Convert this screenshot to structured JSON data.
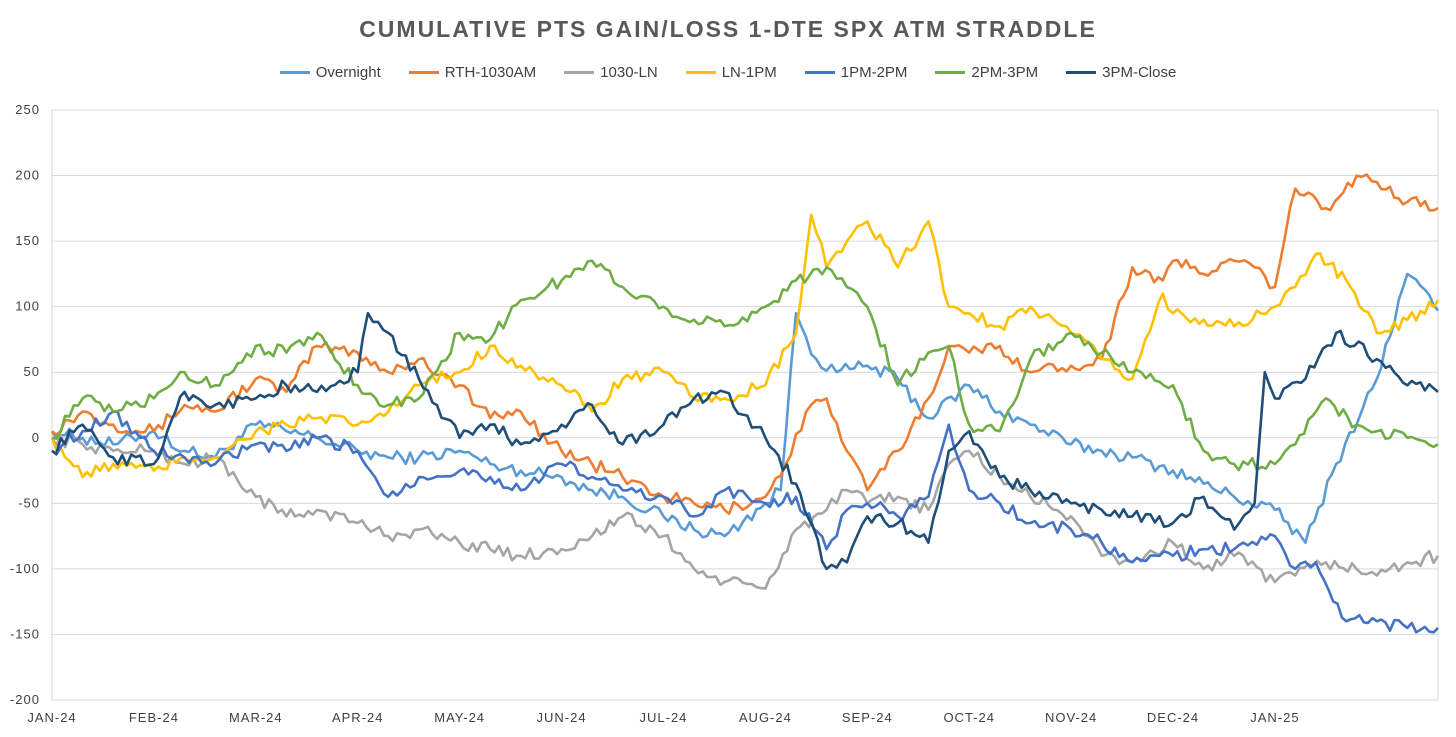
{
  "chart_data": {
    "type": "line",
    "title": "CUMULATIVE PTS GAIN/LOSS 1-DTE SPX ATM STRADDLE",
    "xlabel": "",
    "ylabel": "",
    "ylim": [
      -200,
      250
    ],
    "yticks": [
      -200,
      -150,
      -100,
      -50,
      0,
      50,
      100,
      150,
      200,
      250
    ],
    "x_tick_labels": [
      "JAN-24",
      "FEB-24",
      "MAR-24",
      "APR-24",
      "MAY-24",
      "JUN-24",
      "JUL-24",
      "AUG-24",
      "SEP-24",
      "OCT-24",
      "NOV-24",
      "DEC-24",
      "JAN-25"
    ],
    "x_range_months": [
      0,
      13.6
    ],
    "legend_position": "top",
    "gridlines": "horizontal",
    "series": [
      {
        "name": "Overnight",
        "color": "#5B9BD5",
        "x": [
          0,
          0.3,
          0.6,
          1,
          1.3,
          1.6,
          2,
          2.3,
          2.6,
          3,
          3.3,
          3.6,
          4,
          4.3,
          4.6,
          5,
          5.3,
          5.6,
          6,
          6.3,
          6.6,
          7,
          7.15,
          7.3,
          7.5,
          7.7,
          8,
          8.3,
          8.6,
          9,
          9.3,
          9.6,
          10,
          10.3,
          10.6,
          11,
          11.3,
          11.6,
          12,
          12.3,
          12.6,
          13,
          13.3,
          13.6
        ],
        "values": [
          5,
          0,
          -5,
          5,
          -10,
          -15,
          10,
          5,
          0,
          -10,
          -15,
          -15,
          -10,
          -20,
          -25,
          -30,
          -40,
          -45,
          -60,
          -70,
          -75,
          -50,
          -40,
          95,
          60,
          50,
          55,
          45,
          15,
          40,
          20,
          10,
          -5,
          -10,
          -15,
          -25,
          -35,
          -45,
          -55,
          -80,
          -20,
          45,
          125,
          97
        ]
      },
      {
        "name": "RTH-1030AM",
        "color": "#ED7D31",
        "x": [
          0,
          0.3,
          0.6,
          1,
          1.3,
          1.6,
          2,
          2.3,
          2.6,
          3,
          3.3,
          3.6,
          4,
          4.3,
          4.6,
          5,
          5.3,
          5.6,
          6,
          6.3,
          6.6,
          7,
          7.2,
          7.4,
          7.6,
          7.8,
          8,
          8.3,
          8.6,
          8.8,
          9,
          9.3,
          9.6,
          10,
          10.3,
          10.6,
          10.9,
          11,
          11.3,
          11.6,
          11.8,
          12,
          12.2,
          12.5,
          12.8,
          13,
          13.3,
          13.6
        ],
        "values": [
          5,
          20,
          10,
          5,
          25,
          20,
          45,
          35,
          70,
          65,
          50,
          60,
          40,
          15,
          20,
          -10,
          -20,
          -30,
          -45,
          -50,
          -55,
          -45,
          -20,
          20,
          30,
          -10,
          -40,
          -10,
          30,
          70,
          65,
          70,
          50,
          55,
          60,
          130,
          120,
          135,
          125,
          135,
          130,
          115,
          190,
          175,
          200,
          195,
          180,
          175
        ]
      },
      {
        "name": "1030-LN",
        "color": "#A5A5A5",
        "x": [
          0,
          0.3,
          0.6,
          1,
          1.3,
          1.6,
          2,
          2.3,
          2.6,
          3,
          3.3,
          3.6,
          4,
          4.3,
          4.6,
          5,
          5.3,
          5.6,
          6,
          6.3,
          6.6,
          7,
          7.3,
          7.6,
          7.8,
          8,
          8.3,
          8.6,
          8.8,
          9,
          9.3,
          9.6,
          10,
          10.3,
          10.6,
          11,
          11.3,
          11.6,
          12,
          12.2,
          12.5,
          12.8,
          13,
          13.3,
          13.6
        ],
        "values": [
          0,
          -5,
          -10,
          -10,
          -20,
          -15,
          -45,
          -60,
          -55,
          -65,
          -75,
          -70,
          -80,
          -85,
          -90,
          -85,
          -75,
          -60,
          -75,
          -100,
          -110,
          -115,
          -70,
          -55,
          -40,
          -50,
          -45,
          -55,
          -20,
          -10,
          -30,
          -45,
          -60,
          -90,
          -95,
          -80,
          -100,
          -90,
          -110,
          -105,
          -95,
          -100,
          -105,
          -95,
          -90
        ]
      },
      {
        "name": "LN-1PM",
        "color": "#FFC000",
        "x": [
          0,
          0.3,
          0.6,
          1,
          1.3,
          1.6,
          2,
          2.3,
          2.6,
          3,
          3.3,
          3.6,
          4,
          4.3,
          4.6,
          5,
          5.3,
          5.6,
          6,
          6.3,
          6.6,
          7,
          7.3,
          7.45,
          7.6,
          7.8,
          8,
          8.3,
          8.6,
          8.8,
          9,
          9.3,
          9.6,
          10,
          10.3,
          10.6,
          10.9,
          11,
          11.3,
          11.6,
          12,
          12.2,
          12.4,
          12.7,
          13,
          13.3,
          13.6
        ],
        "values": [
          0,
          -30,
          -20,
          -25,
          -15,
          -15,
          5,
          10,
          15,
          10,
          20,
          40,
          50,
          70,
          55,
          40,
          20,
          45,
          50,
          30,
          30,
          40,
          80,
          170,
          130,
          150,
          165,
          130,
          165,
          100,
          95,
          85,
          100,
          80,
          60,
          45,
          110,
          95,
          90,
          85,
          100,
          115,
          140,
          120,
          80,
          90,
          105
        ]
      },
      {
        "name": "1PM-2PM",
        "color": "#4472C4",
        "x": [
          0,
          0.3,
          0.6,
          1,
          1.3,
          1.6,
          2,
          2.3,
          2.6,
          3,
          3.3,
          3.6,
          4,
          4.3,
          4.6,
          5,
          5.3,
          5.6,
          6,
          6.3,
          6.6,
          7,
          7.3,
          7.6,
          7.8,
          8,
          8.3,
          8.6,
          8.8,
          9,
          9.3,
          9.6,
          10,
          10.3,
          10.6,
          11,
          11.3,
          11.6,
          12,
          12.2,
          12.4,
          12.7,
          13,
          13.3,
          13.6
        ],
        "values": [
          -10,
          5,
          20,
          -10,
          -15,
          -20,
          -5,
          -10,
          0,
          -10,
          -45,
          -30,
          -25,
          -30,
          -40,
          -20,
          -30,
          -40,
          -45,
          -60,
          -40,
          -50,
          -45,
          -85,
          -55,
          -50,
          -60,
          -45,
          10,
          -40,
          -50,
          -65,
          -70,
          -80,
          -95,
          -90,
          -85,
          -85,
          -75,
          -100,
          -95,
          -140,
          -140,
          -145,
          -145
        ]
      },
      {
        "name": "2PM-3PM",
        "color": "#70AD47",
        "x": [
          0,
          0.3,
          0.6,
          1,
          1.3,
          1.6,
          2,
          2.3,
          2.6,
          3,
          3.3,
          3.6,
          4,
          4.3,
          4.6,
          5,
          5.3,
          5.6,
          6,
          6.3,
          6.6,
          7,
          7.3,
          7.6,
          7.8,
          8,
          8.3,
          8.6,
          8.8,
          9,
          9.3,
          9.6,
          10,
          10.3,
          10.6,
          11,
          11.3,
          11.6,
          12,
          12.2,
          12.5,
          12.8,
          13,
          13.3,
          13.6
        ],
        "values": [
          0,
          30,
          20,
          30,
          50,
          40,
          70,
          65,
          80,
          40,
          25,
          30,
          80,
          75,
          105,
          120,
          135,
          115,
          100,
          90,
          85,
          100,
          120,
          130,
          115,
          100,
          40,
          65,
          70,
          10,
          5,
          60,
          80,
          65,
          50,
          40,
          -10,
          -20,
          -20,
          -5,
          30,
          10,
          5,
          0,
          -5
        ]
      },
      {
        "name": "3PM-Close",
        "color": "#1F4E79",
        "x": [
          0,
          0.3,
          0.6,
          1,
          1.3,
          1.6,
          2,
          2.3,
          2.6,
          3,
          3.1,
          3.3,
          3.6,
          4,
          4.3,
          4.6,
          5,
          5.3,
          5.6,
          6,
          6.3,
          6.6,
          7,
          7.3,
          7.6,
          7.8,
          8,
          8.3,
          8.6,
          8.8,
          9,
          9.3,
          9.6,
          10,
          10.3,
          10.6,
          11,
          11.3,
          11.6,
          11.8,
          11.9,
          12,
          12.3,
          12.6,
          13,
          13.3,
          13.6
        ],
        "values": [
          -10,
          10,
          -15,
          -20,
          35,
          25,
          30,
          40,
          35,
          50,
          95,
          80,
          45,
          0,
          10,
          -5,
          10,
          25,
          -5,
          10,
          30,
          35,
          0,
          -35,
          -100,
          -95,
          -60,
          -65,
          -80,
          -10,
          5,
          -30,
          -40,
          -50,
          -55,
          -60,
          -65,
          -45,
          -70,
          -50,
          50,
          30,
          45,
          80,
          60,
          40,
          35
        ]
      }
    ]
  }
}
